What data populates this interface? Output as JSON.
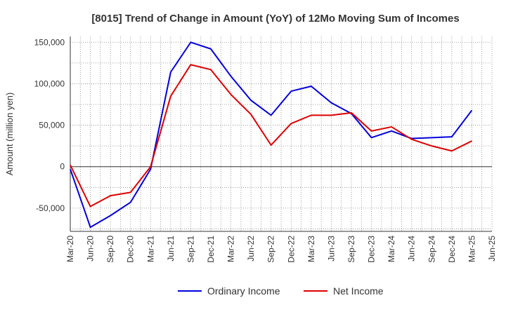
{
  "chart_data": {
    "type": "line",
    "title": "[8015]  Trend of Change in Amount (YoY) of 12Mo Moving Sum of Incomes",
    "xlabel": "",
    "ylabel": "Amount (million yen)",
    "categories": [
      "Mar-20",
      "Jun-20",
      "Sep-20",
      "Dec-20",
      "Mar-21",
      "Jun-21",
      "Sep-21",
      "Dec-21",
      "Mar-22",
      "Jun-22",
      "Sep-22",
      "Dec-22",
      "Mar-23",
      "Jun-23",
      "Sep-23",
      "Dec-23",
      "Mar-24",
      "Jun-24",
      "Sep-24",
      "Dec-24",
      "Mar-25",
      "Jun-25"
    ],
    "ylim": [
      -78000,
      157000
    ],
    "yticks": [
      -50000,
      0,
      50000,
      100000,
      150000
    ],
    "ytick_labels": [
      "-50,000",
      "0",
      "50,000",
      "100,000",
      "150,000"
    ],
    "grid": true,
    "legend_position": "bottom-center",
    "series": [
      {
        "name": "Ordinary Income",
        "color": "#0000dd",
        "values": [
          -3000,
          -73000,
          -59000,
          -43000,
          -3000,
          114000,
          150000,
          142000,
          109000,
          80000,
          62000,
          91000,
          97000,
          77000,
          64000,
          35000,
          43000,
          34000,
          35000,
          36000,
          68000,
          null
        ]
      },
      {
        "name": "Net Income",
        "color": "#dd0000",
        "values": [
          2000,
          -48000,
          -35000,
          -31000,
          0,
          85000,
          123000,
          117000,
          87000,
          63000,
          26000,
          52000,
          62000,
          62000,
          65000,
          43000,
          48000,
          33000,
          25000,
          19000,
          31000,
          null
        ]
      }
    ]
  }
}
